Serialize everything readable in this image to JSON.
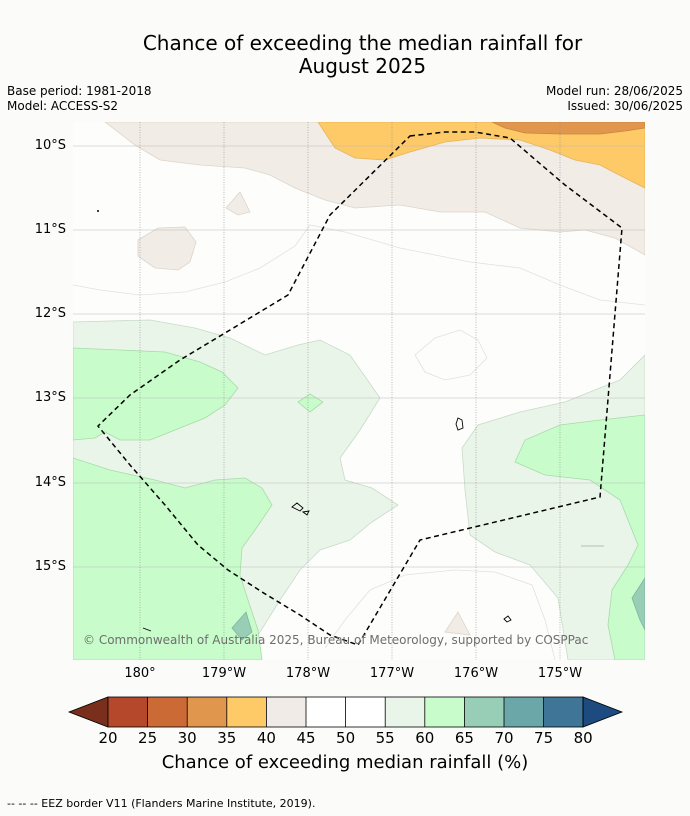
{
  "title_line1": "Chance of exceeding the median rainfall for",
  "title_line2": "August 2025",
  "meta": {
    "base_period": "Base period: 1981-2018",
    "model": "Model: ACCESS-S2",
    "model_run": "Model run: 28/06/2025",
    "issued": "Issued: 30/06/2025"
  },
  "lat_labels": [
    "10°S",
    "11°S",
    "12°S",
    "13°S",
    "14°S",
    "15°S"
  ],
  "lon_labels": [
    "180°",
    "179°W",
    "178°W",
    "177°W",
    "176°W",
    "175°W"
  ],
  "copyright": "© Commonwealth of Australia 2025, Bureau of Meteorology, supported by COSPPac",
  "colorbar": {
    "ticks": [
      "20",
      "25",
      "30",
      "35",
      "40",
      "45",
      "50",
      "55",
      "60",
      "65",
      "70",
      "75",
      "80"
    ],
    "colors": [
      "#7a2f1c",
      "#b5482a",
      "#cc6a36",
      "#e0964c",
      "#fec967",
      "#f0ebe6",
      "#ffffff",
      "#ffffff",
      "#eaf5ea",
      "#c8fcca",
      "#98cdb6",
      "#6ba6a8",
      "#3f7596",
      "#1d4b80"
    ],
    "title": "Chance of exceeding median rainfall (%)"
  },
  "footnote": "--  --  -- EEZ border V11 (Flanders Marine Institute, 2019)."
}
